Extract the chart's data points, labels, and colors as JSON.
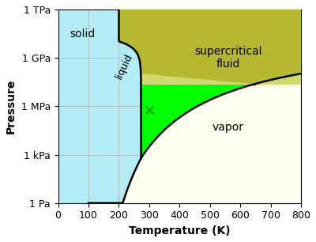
{
  "xlabel": "Temperature (K)",
  "ylabel": "Pressure",
  "xlim": [
    0,
    800
  ],
  "ytick_vals": [
    1,
    1000.0,
    1000000.0,
    1000000000.0,
    1000000000000.0
  ],
  "ytick_labels": [
    "1 Pa",
    "1 kPa",
    "1 MPa",
    "1 GPa",
    "1 TPa"
  ],
  "xtick_vals": [
    0,
    100,
    200,
    300,
    400,
    500,
    600,
    700,
    800
  ],
  "color_solid": "#b3ecf5",
  "color_liquid": "#00ff00",
  "color_vapor": "#fffff0",
  "color_supercritical": "#b5b830",
  "color_supercritical_light": "#d0d870",
  "critical_T": 647.1,
  "critical_P": 22060000.0,
  "triple_T": 273.16,
  "triple_P": 611.7,
  "LR": 5000,
  "sublim_A": 28.9,
  "sublim_B": 6145.0,
  "melt_slope": -7e-09,
  "melt_min_T": 200,
  "dome_LR": 5000,
  "Pmin": 1.0,
  "Pmax": 1000000000000.0,
  "Tmin": 0,
  "Tmax": 800,
  "marker_T": 300,
  "marker_P": 600000.0,
  "marker_color": "#00aa00",
  "label_solid_T": 80,
  "label_solid_P": 30000000000.0,
  "label_liquid_T": 218,
  "label_liquid_P": 300000000.0,
  "label_sc_T": 560,
  "label_sc_P": 1000000000.0,
  "label_vapor_T": 560,
  "label_vapor_P": 50000.0,
  "line_width": 1.8
}
